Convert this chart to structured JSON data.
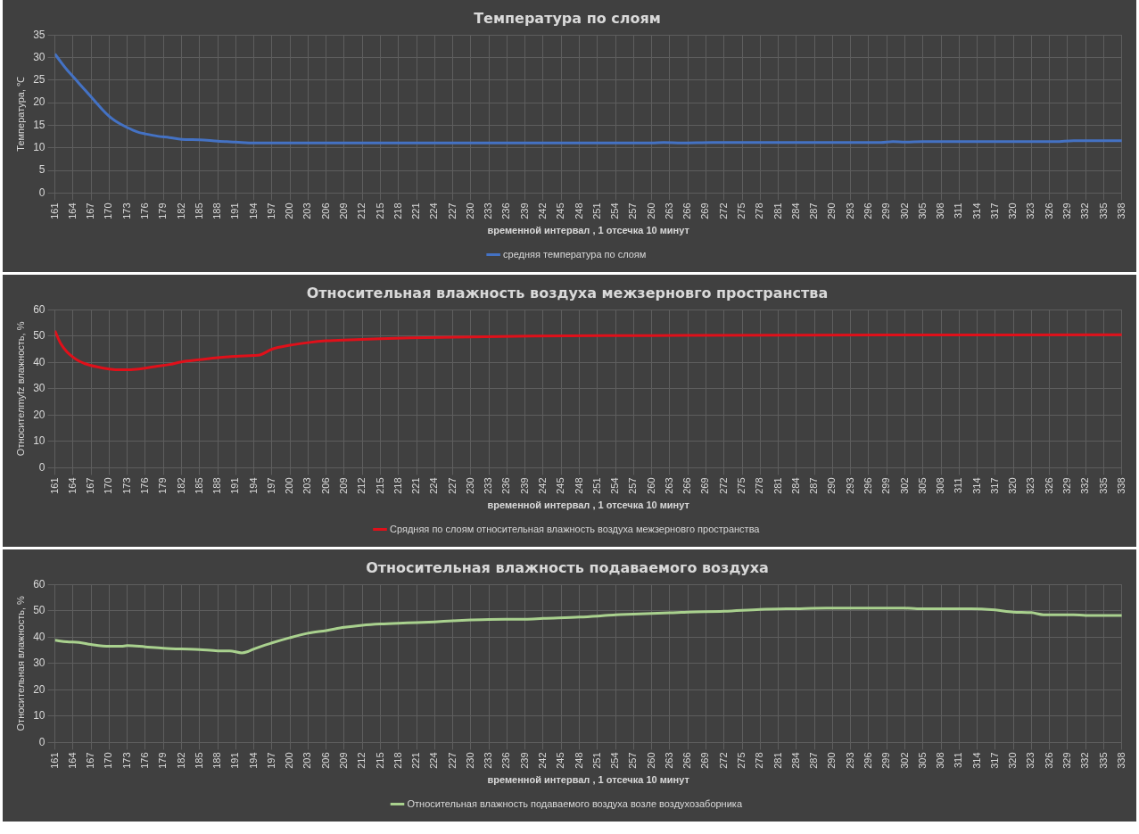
{
  "chart_data": [
    {
      "type": "line",
      "title": "Температура по слоям",
      "xlabel": "временной интервал , 1 отсечка 10 минут",
      "ylabel": "Температура, ℃",
      "grid": true,
      "legend": "bottom",
      "xlim": [
        161,
        338
      ],
      "xticks": [
        161,
        164,
        167,
        170,
        173,
        176,
        179,
        182,
        185,
        188,
        191,
        194,
        197,
        200,
        203,
        206,
        209,
        212,
        215,
        218,
        221,
        224,
        227,
        230,
        233,
        236,
        239,
        242,
        245,
        248,
        251,
        254,
        257,
        260,
        263,
        266,
        269,
        272,
        275,
        278,
        281,
        284,
        287,
        290,
        293,
        296,
        299,
        302,
        305,
        308,
        311,
        314,
        317,
        320,
        323,
        326,
        329,
        332,
        335,
        338
      ],
      "ylim": [
        0,
        35
      ],
      "yticks": [
        0,
        5,
        10,
        15,
        20,
        25,
        30,
        35
      ],
      "x": [
        161,
        162,
        163,
        164,
        165,
        166,
        167,
        168,
        169,
        170,
        171,
        172,
        173,
        174,
        175,
        176,
        178,
        180,
        182,
        185,
        188,
        191,
        194,
        220,
        260,
        262,
        265,
        270,
        298,
        300,
        302,
        305,
        327,
        330,
        338
      ],
      "series": [
        {
          "name": "средняя температура по слоям",
          "color": "#4472c4",
          "values": [
            30.8,
            29,
            27.3,
            25.8,
            24.3,
            22.8,
            21.3,
            19.8,
            18.3,
            17,
            16,
            15.2,
            14.5,
            13.9,
            13.4,
            13.1,
            12.6,
            12.3,
            11.9,
            11.8,
            11.5,
            11.3,
            11.1,
            11.1,
            11.1,
            11.2,
            11.1,
            11.2,
            11.2,
            11.4,
            11.3,
            11.4,
            11.4,
            11.6,
            11.6
          ]
        }
      ]
    },
    {
      "type": "line",
      "title": "Относительная влажность воздуха межзерновго пространства",
      "xlabel": "временной интервал , 1 отсечка 10 минут",
      "ylabel": "Относителmyfz влажность, %",
      "grid": true,
      "legend": "bottom",
      "xlim": [
        161,
        338
      ],
      "xticks": [
        161,
        164,
        167,
        170,
        173,
        176,
        179,
        182,
        185,
        188,
        191,
        194,
        197,
        200,
        203,
        206,
        209,
        212,
        215,
        218,
        221,
        224,
        227,
        230,
        233,
        236,
        239,
        242,
        245,
        248,
        251,
        254,
        257,
        260,
        263,
        266,
        269,
        272,
        275,
        278,
        281,
        284,
        287,
        290,
        293,
        296,
        299,
        302,
        305,
        308,
        311,
        314,
        317,
        320,
        323,
        326,
        329,
        332,
        335,
        338
      ],
      "ylim": [
        0,
        60
      ],
      "yticks": [
        0,
        10,
        20,
        30,
        40,
        50,
        60
      ],
      "x": [
        161,
        162,
        163,
        164,
        165,
        166,
        168,
        170,
        172,
        174,
        176,
        178,
        180,
        182,
        185,
        188,
        191,
        194,
        195,
        197,
        200,
        203,
        206,
        210,
        215,
        220,
        230,
        240,
        260,
        300,
        338
      ],
      "series": [
        {
          "name": "Срядняя по слоям относительная влажность воздуха межзерновго пространства",
          "color": "#e0101a",
          "values": [
            52,
            47,
            44,
            42,
            40.5,
            39.5,
            38.3,
            37.5,
            37.2,
            37.3,
            37.8,
            38.6,
            39.2,
            40.2,
            41,
            41.8,
            42.3,
            42.6,
            42.8,
            45,
            46.5,
            47.5,
            48.2,
            48.6,
            49,
            49.3,
            49.7,
            50,
            50.2,
            50.4,
            50.5
          ]
        }
      ]
    },
    {
      "type": "line",
      "title": "Относительная влажность подаваемого воздуха",
      "xlabel": "временной интервал , 1 отсечка 10 минут",
      "ylabel": "Относительная влажность, %",
      "grid": true,
      "legend": "bottom",
      "xlim": [
        161,
        338
      ],
      "xticks": [
        161,
        164,
        167,
        170,
        173,
        176,
        179,
        182,
        185,
        188,
        191,
        194,
        197,
        200,
        203,
        206,
        209,
        212,
        215,
        218,
        221,
        224,
        227,
        230,
        233,
        236,
        239,
        242,
        245,
        248,
        251,
        254,
        257,
        260,
        263,
        266,
        269,
        272,
        275,
        278,
        281,
        284,
        287,
        290,
        293,
        296,
        299,
        302,
        305,
        308,
        311,
        314,
        317,
        320,
        323,
        326,
        329,
        332,
        335,
        338
      ],
      "ylim": [
        0,
        60
      ],
      "yticks": [
        0,
        10,
        20,
        30,
        40,
        50,
        60
      ],
      "x": [
        161,
        163,
        165,
        167,
        170,
        172,
        173,
        176,
        179,
        182,
        185,
        188,
        190,
        192,
        193,
        194,
        197,
        200,
        203,
        206,
        209,
        212,
        215,
        218,
        221,
        224,
        227,
        230,
        233,
        239,
        242,
        248,
        251,
        254,
        257,
        263,
        266,
        272,
        278,
        284,
        289,
        302,
        304,
        313,
        317,
        320,
        323,
        325,
        330,
        332,
        338
      ],
      "series": [
        {
          "name": "Относительная влажность подаваемого воздуха возле воздухозаборника",
          "color": "#a9d18e",
          "values": [
            38.8,
            38.2,
            38,
            37.2,
            36.5,
            36.5,
            36.8,
            36.3,
            35.8,
            35.5,
            35.3,
            34.8,
            34.8,
            34,
            34.5,
            35.5,
            37.8,
            39.8,
            41.5,
            42.5,
            43.7,
            44.5,
            45,
            45.3,
            45.5,
            45.8,
            46.2,
            46.5,
            46.7,
            46.8,
            47.1,
            47.6,
            48,
            48.5,
            48.7,
            49.2,
            49.5,
            49.8,
            50.5,
            50.8,
            51,
            51,
            50.8,
            50.8,
            50.3,
            49.5,
            49.3,
            48.5,
            48.5,
            48.2,
            48.2
          ]
        }
      ]
    }
  ]
}
